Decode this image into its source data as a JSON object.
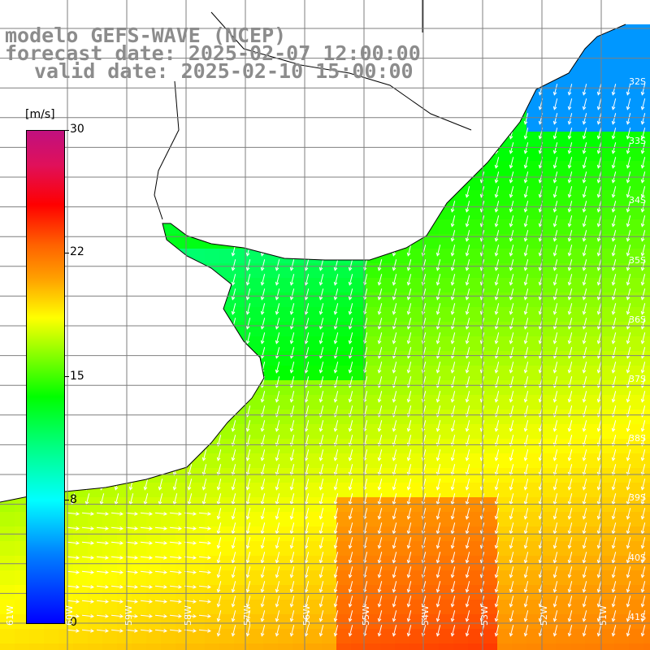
{
  "titles": {
    "line1": "modelo GEFS-WAVE (NCEP)",
    "line2": "forecast date: 2025-02-07 12:00:00",
    "line3": "valid date: 2025-02-10 15:00:00"
  },
  "colorbar": {
    "unit": "[m/s]",
    "ticks": [
      "30",
      "22",
      "15",
      "8",
      "0"
    ],
    "min": 0,
    "max": 30
  },
  "grid": {
    "lat_labels": [
      "32S",
      "33S",
      "34S",
      "35S",
      "36S",
      "37S",
      "38S",
      "39S",
      "40S",
      "41S"
    ],
    "lon_labels": [
      "61W",
      "60W",
      "59W",
      "58W",
      "57W",
      "56W",
      "55W",
      "54W",
      "53W",
      "52W",
      "51W"
    ]
  },
  "colors": {
    "land": "#ffffff",
    "coastline": "#000000",
    "gridline": "#7f7f7f",
    "arrow": "#ffffff",
    "title": "#8c8c8c"
  }
}
